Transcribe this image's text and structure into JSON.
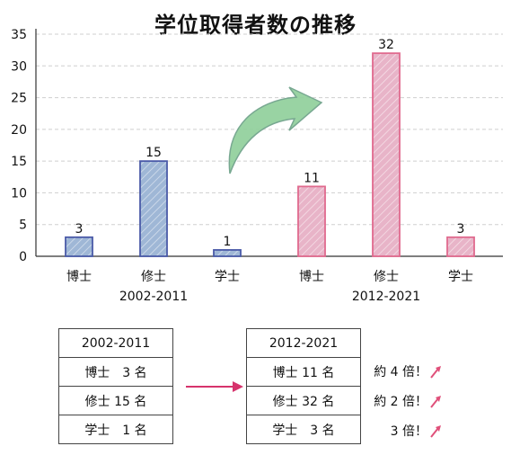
{
  "title": "学位取得者数の推移",
  "chart_data": {
    "type": "bar",
    "title": "学位取得者数の推移",
    "groups": [
      {
        "label": "2002-2011",
        "categories": [
          "博士",
          "修士",
          "学士"
        ],
        "values": [
          3,
          15,
          1
        ],
        "color": "#9fb7d6",
        "edge": "#4a5aa8"
      },
      {
        "label": "2012-2021",
        "categories": [
          "博士",
          "修士",
          "学士"
        ],
        "values": [
          11,
          32,
          3
        ],
        "color": "#e8b4c8",
        "edge": "#e06a8e"
      }
    ],
    "ylim": [
      0,
      35
    ],
    "yticks": [
      0,
      5,
      10,
      15,
      20,
      25,
      30,
      35
    ],
    "grid": true,
    "arrow_color": "#8fcf9a"
  },
  "table_left": {
    "header": "2002-2011",
    "rows": [
      "博士　3 名",
      "修士 15 名",
      "学士　1 名"
    ]
  },
  "table_right": {
    "header": "2012-2021",
    "rows": [
      "博士 11 名",
      "修士 32 名",
      "学士　3 名"
    ]
  },
  "ratios": [
    "約 4 倍！",
    "約 2 倍！",
    "3 倍！"
  ],
  "colors": {
    "arrow_mid": "#d6336c",
    "ratio_arrow": "#e0507a"
  }
}
